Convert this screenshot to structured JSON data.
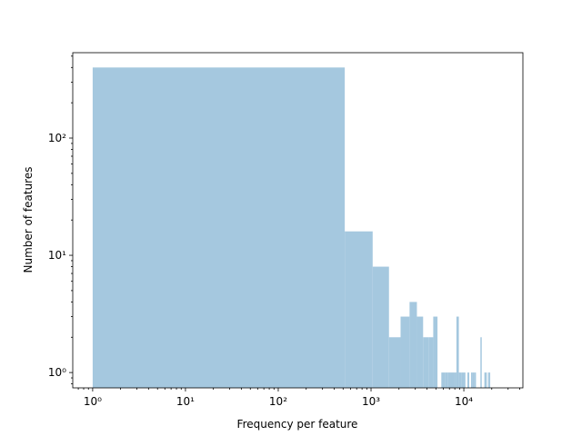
{
  "chart_data": {
    "type": "histogram",
    "xlabel": "Frequency per feature",
    "ylabel": "Number of features",
    "bins": [
      1,
      521,
      1041,
      1561,
      2081,
      2601,
      3121,
      3641,
      4161,
      4681,
      5201,
      5721,
      6241,
      6761,
      7281,
      7801,
      8321,
      8841,
      9361,
      9881,
      10401,
      10921,
      11441,
      11961,
      12481,
      13001,
      13521,
      14041,
      14561,
      15081,
      15601,
      16121,
      16641,
      17161,
      17681,
      18201,
      18721,
      19241
    ],
    "values": [
      400,
      16,
      8,
      2,
      3,
      4,
      3,
      2,
      2,
      3,
      0,
      1,
      1,
      1,
      1,
      1,
      3,
      1,
      1,
      1,
      0,
      1,
      0,
      1,
      1,
      1,
      0,
      0,
      0,
      2,
      0,
      0,
      1,
      1,
      0,
      1,
      1
    ],
    "color": "#a5c8df",
    "xscale": "log",
    "yscale": "log",
    "xlim": [
      0.61,
      43300
    ],
    "ylim": [
      0.74,
      535
    ],
    "xticks": [
      {
        "value": 1,
        "label": "10⁰"
      },
      {
        "value": 10,
        "label": "10¹"
      },
      {
        "value": 100,
        "label": "10²"
      },
      {
        "value": 1000,
        "label": "10³"
      },
      {
        "value": 10000,
        "label": "10⁴"
      }
    ],
    "yticks": [
      {
        "value": 1,
        "label": "10⁰"
      },
      {
        "value": 10,
        "label": "10¹"
      },
      {
        "value": 100,
        "label": "10²"
      }
    ]
  }
}
